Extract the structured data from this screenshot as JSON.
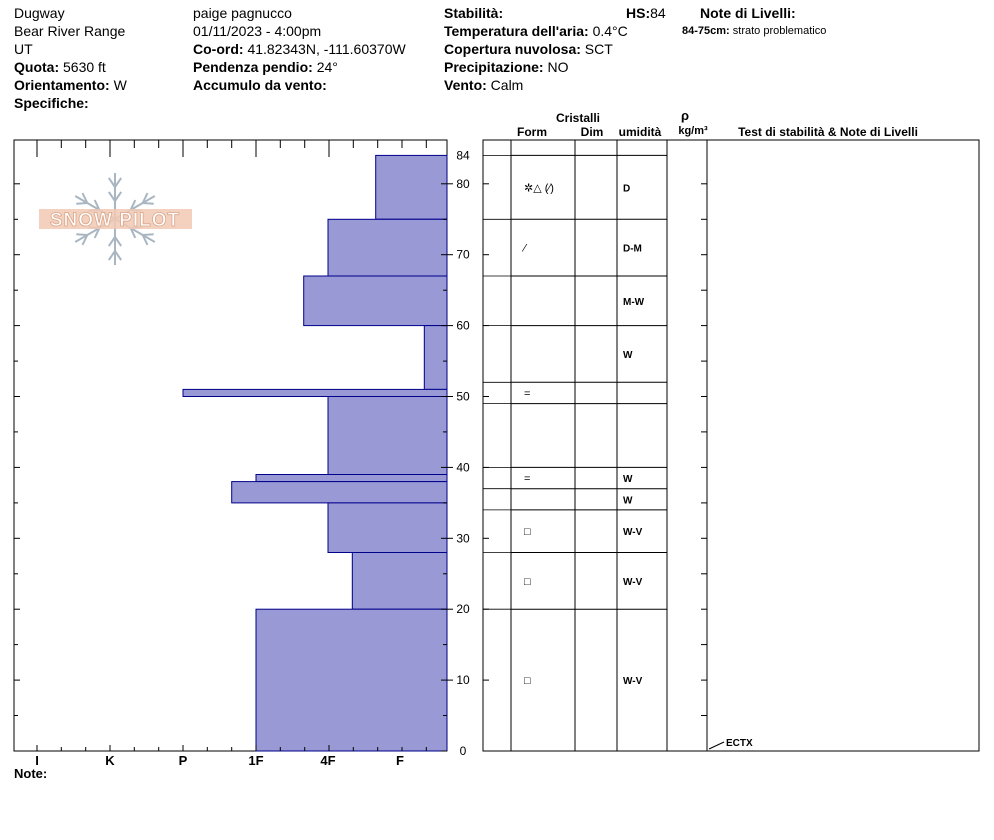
{
  "header": {
    "location": "Dugway",
    "range": "Bear River Range",
    "state": "UT",
    "elevation_label": "Quota:",
    "elevation": "5630 ft",
    "aspect_label": "Orientamento:",
    "aspect": "W",
    "specifics_label": "Specifiche:",
    "observer": "paige pagnucco",
    "datetime": "01/11/2023 - 4:00pm",
    "coords_label": "Co-ord:",
    "coords": "41.82343N, -111.60370W",
    "slope_label": "Pendenza pendio:",
    "slope": "24°",
    "wind_loading_label": "Accumulo da vento:",
    "stability_label": "Stabilità:",
    "hs_label": "HS:",
    "hs": "84",
    "air_temp_label": "Temperatura dell'aria:",
    "air_temp": "0.4°C",
    "sky_label": "Copertura nuvolosa:",
    "sky": "SCT",
    "precip_label": "Precipitazione:",
    "precip": "NO",
    "wind_label": "Vento:",
    "wind": "Calm",
    "layer_notes_label": "Note di Livelli:",
    "layer_note_range": "84-75cm:",
    "layer_note_text": "strato problematico"
  },
  "logo_text": "SNOW PILOT",
  "column_headers": {
    "crystals": "Cristalli",
    "form": "Form",
    "size": "Dim",
    "moisture": "umidità",
    "rho": "ρ",
    "density": "kg/m³",
    "tests": "Test di stabilità & Note di Livelli"
  },
  "note_label": "Note:",
  "colors": {
    "fill": "#9999d6",
    "edge": "#00008b",
    "grid": "#000000"
  },
  "chart_data": {
    "type": "bar",
    "orientation": "horizontal",
    "y_axis": {
      "unit": "cm",
      "ylim": [
        0,
        84
      ],
      "ticks": [
        0,
        10,
        20,
        30,
        40,
        50,
        60,
        70,
        80,
        84
      ]
    },
    "x_axis": {
      "categories": [
        "I",
        "K",
        "P",
        "1F",
        "4F",
        "F"
      ]
    },
    "hardness_profile": [
      {
        "top": 84,
        "bottom": 75,
        "hardness": "F+"
      },
      {
        "top": 75,
        "bottom": 67,
        "hardness": "4F"
      },
      {
        "top": 67,
        "bottom": 60,
        "hardness": "4F+"
      },
      {
        "top": 60,
        "bottom": 51,
        "hardness": "F-"
      },
      {
        "top": 51,
        "bottom": 50,
        "hardness": "P"
      },
      {
        "top": 50,
        "bottom": 39,
        "hardness": "4F"
      },
      {
        "top": 39,
        "bottom": 38,
        "hardness": "1F"
      },
      {
        "top": 38,
        "bottom": 35,
        "hardness": "1F+"
      },
      {
        "top": 35,
        "bottom": 28,
        "hardness": "4F"
      },
      {
        "top": 28,
        "bottom": 20,
        "hardness": "4F-"
      },
      {
        "top": 20,
        "bottom": 0,
        "hardness": "1F"
      }
    ],
    "layers": [
      {
        "top": 84,
        "bottom": 75,
        "form": "✲△ (⁄)",
        "moisture": "D"
      },
      {
        "top": 75,
        "bottom": 67,
        "form": "⁄",
        "moisture": "D-M"
      },
      {
        "top": 67,
        "bottom": 60,
        "form": "",
        "moisture": "M-W"
      },
      {
        "top": 60,
        "bottom": 52,
        "form": "",
        "moisture": "W"
      },
      {
        "top": 52,
        "bottom": 49,
        "form": "=",
        "moisture": ""
      },
      {
        "top": 49,
        "bottom": 40,
        "form": "",
        "moisture": ""
      },
      {
        "top": 40,
        "bottom": 37,
        "form": "=",
        "moisture": "W"
      },
      {
        "top": 37,
        "bottom": 34,
        "form": "",
        "moisture": "W"
      },
      {
        "top": 34,
        "bottom": 28,
        "form": "□",
        "moisture": "W-V"
      },
      {
        "top": 28,
        "bottom": 20,
        "form": "□",
        "moisture": "W-V"
      },
      {
        "top": 20,
        "bottom": 0,
        "form": "□",
        "moisture": "W-V"
      }
    ],
    "stability_tests": [
      {
        "height": 0,
        "label": "ECTX"
      }
    ]
  }
}
